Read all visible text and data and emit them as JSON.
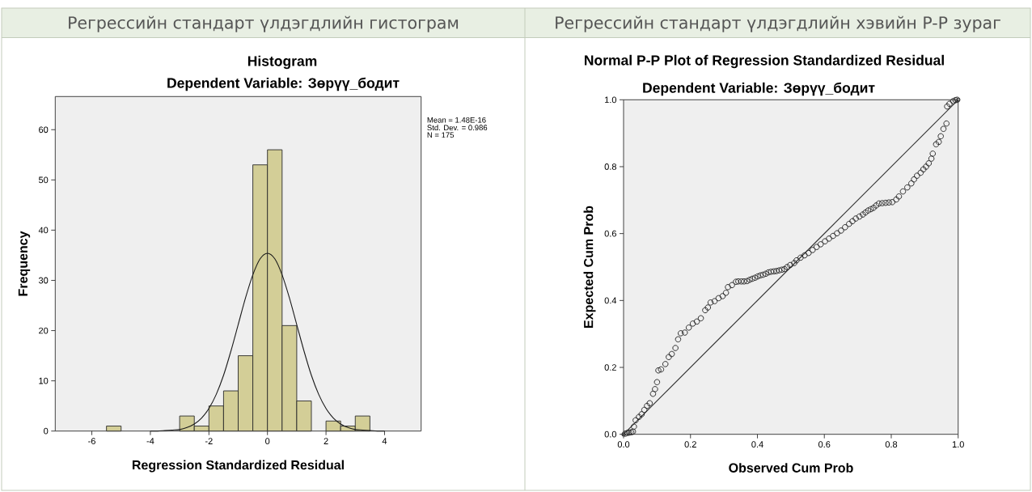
{
  "chart_data": [
    {
      "type": "histogram",
      "title": "Histogram",
      "subtitle": "Dependent Variable: Зөрүү_бодит",
      "xlabel": "Regression Standardized Residual",
      "ylabel": "Frequency",
      "annotations": [
        "Регрессийн стандарт үлдэгдлийн гистограм",
        "Mean = 1.48E-16",
        "Std. Dev. = 0.986",
        "N = 175"
      ],
      "bins": [
        -5.5,
        -5.0,
        -4.5,
        -4.0,
        -3.5,
        -3.0,
        -2.5,
        -2.0,
        -1.5,
        -1.0,
        -0.5,
        0.0,
        0.5,
        1.0,
        1.5,
        2.0,
        2.5,
        3.0,
        3.5
      ],
      "values": [
        1,
        0,
        0,
        0,
        0,
        3,
        1,
        5,
        8,
        15,
        53,
        56,
        21,
        6,
        0,
        2,
        1,
        3
      ],
      "color": "#d3ce97",
      "series": [
        {
          "type": "line",
          "color": "#1a1a1a",
          "x": [
            -4,
            -3.75,
            -3.5,
            -3.25,
            -3,
            -2.75,
            -2.5,
            -2.25,
            -2,
            -1.75,
            -1.5,
            -1.25,
            -1,
            -0.75,
            -0.5,
            -0.25,
            0,
            0.25,
            0.5,
            0.75,
            1,
            1.25,
            1.5,
            1.75,
            2,
            2.25,
            2.5,
            2.75,
            3,
            3.25,
            3.5,
            3.75,
            4
          ],
          "values": [
            0.0,
            0.0,
            0.1,
            0.2,
            0.3,
            0.7,
            1.4,
            2.6,
            4.5,
            7.3,
            11.1,
            15.9,
            21.2,
            26.5,
            31.1,
            34.3,
            35.4,
            34.3,
            31.1,
            26.5,
            21.2,
            15.9,
            11.1,
            7.3,
            4.5,
            2.6,
            1.4,
            0.7,
            0.3,
            0.2,
            0.1,
            0.0,
            0.0
          ]
        }
      ],
      "xlim": [
        -7.25,
        5.25
      ],
      "xticks": [
        -6,
        -4,
        -2,
        0,
        2,
        4
      ],
      "ylim": [
        0,
        66.6
      ],
      "yticks": [
        0,
        10,
        20,
        30,
        40,
        50,
        60
      ]
    },
    {
      "type": "scatter",
      "title": "Normal P-P Plot of Regression Standardized Residual",
      "subtitle": "Dependent Variable: Зөрүү_бодит",
      "xlabel": "Observed Cum Prob",
      "ylabel": "Expected Cum Prob",
      "annotations": [
        "Регрессийн стандарт үлдэгдлийн хэвийн P-P зураг"
      ],
      "marker": "circle",
      "series": [
        {
          "type": "scatter",
          "color": "#1e1e1e",
          "x": [
            0.005,
            0.011,
            0.017,
            0.023,
            0.028,
            0.031,
            0.036,
            0.046,
            0.054,
            0.062,
            0.07,
            0.078,
            0.088,
            0.094,
            0.1,
            0.104,
            0.112,
            0.125,
            0.135,
            0.144,
            0.155,
            0.163,
            0.171,
            0.183,
            0.195,
            0.207,
            0.219,
            0.231,
            0.244,
            0.252,
            0.26,
            0.272,
            0.284,
            0.296,
            0.306,
            0.312,
            0.324,
            0.336,
            0.343,
            0.352,
            0.36,
            0.369,
            0.377,
            0.385,
            0.393,
            0.401,
            0.409,
            0.417,
            0.425,
            0.433,
            0.441,
            0.449,
            0.457,
            0.465,
            0.473,
            0.481,
            0.489,
            0.498,
            0.51,
            0.517,
            0.529,
            0.541,
            0.553,
            0.565,
            0.577,
            0.589,
            0.602,
            0.614,
            0.626,
            0.638,
            0.65,
            0.662,
            0.674,
            0.684,
            0.694,
            0.705,
            0.715,
            0.723,
            0.731,
            0.739,
            0.747,
            0.755,
            0.763,
            0.773,
            0.783,
            0.793,
            0.803,
            0.815,
            0.823,
            0.835,
            0.848,
            0.86,
            0.868,
            0.877,
            0.888,
            0.896,
            0.904,
            0.912,
            0.92,
            0.924,
            0.934,
            0.942,
            0.948,
            0.956,
            0.965,
            0.967,
            0.974,
            0.985,
            0.992,
            0.997
          ],
          "values": [
            0.002,
            0.004,
            0.005,
            0.006,
            0.008,
            0.023,
            0.042,
            0.052,
            0.06,
            0.073,
            0.085,
            0.093,
            0.121,
            0.135,
            0.156,
            0.191,
            0.194,
            0.21,
            0.231,
            0.24,
            0.258,
            0.284,
            0.302,
            0.304,
            0.319,
            0.331,
            0.337,
            0.347,
            0.371,
            0.379,
            0.394,
            0.398,
            0.407,
            0.413,
            0.423,
            0.44,
            0.446,
            0.456,
            0.457,
            0.457,
            0.457,
            0.458,
            0.462,
            0.465,
            0.468,
            0.472,
            0.475,
            0.477,
            0.48,
            0.484,
            0.486,
            0.487,
            0.488,
            0.49,
            0.492,
            0.494,
            0.5,
            0.506,
            0.512,
            0.52,
            0.528,
            0.535,
            0.542,
            0.551,
            0.56,
            0.568,
            0.577,
            0.585,
            0.593,
            0.601,
            0.609,
            0.619,
            0.629,
            0.637,
            0.645,
            0.651,
            0.657,
            0.663,
            0.669,
            0.673,
            0.677,
            0.684,
            0.69,
            0.691,
            0.692,
            0.693,
            0.694,
            0.702,
            0.711,
            0.726,
            0.738,
            0.75,
            0.762,
            0.773,
            0.782,
            0.792,
            0.8,
            0.81,
            0.824,
            0.839,
            0.867,
            0.874,
            0.891,
            0.913,
            0.929,
            0.98,
            0.988,
            0.996,
            0.999,
            1.0
          ]
        },
        {
          "type": "line",
          "color": "#333333",
          "x": [
            0,
            1
          ],
          "values": [
            0,
            1
          ]
        }
      ],
      "xlim": [
        0,
        1
      ],
      "xticks": [
        {
          "value": 0,
          "label": "0.0"
        },
        0.2,
        0.4,
        0.6,
        0.8,
        {
          "value": 1,
          "label": "1.0"
        }
      ],
      "ylim": [
        0,
        1
      ],
      "yticks": [
        {
          "value": 0,
          "label": "0.0"
        },
        0.2,
        0.4,
        0.6,
        0.8,
        {
          "value": 1,
          "label": "1.0"
        }
      ]
    }
  ]
}
